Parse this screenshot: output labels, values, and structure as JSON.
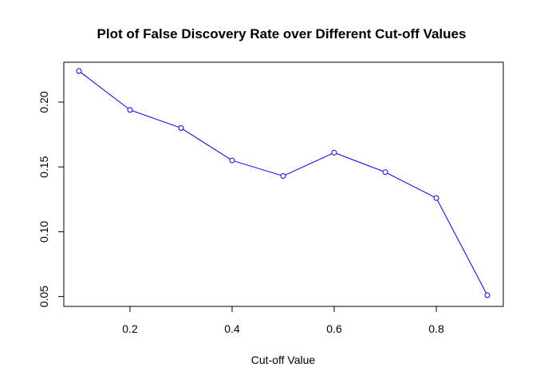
{
  "chart_data": {
    "type": "line",
    "title": "Plot of False Discovery Rate over Different Cut-off Values",
    "xlabel": "Cut-off Value",
    "ylabel": "",
    "x": [
      0.1,
      0.2,
      0.3,
      0.4,
      0.5,
      0.6,
      0.7,
      0.8,
      0.9
    ],
    "series": [
      {
        "values": [
          0.224,
          0.194,
          0.18,
          0.155,
          0.143,
          0.161,
          0.146,
          0.126,
          0.051
        ]
      }
    ],
    "xlim": [
      0.1,
      0.9
    ],
    "ylim": [
      0.051,
      0.224
    ],
    "xticks": [
      0.2,
      0.4,
      0.6,
      0.8
    ],
    "xtick_labels": [
      "0.2",
      "0.4",
      "0.6",
      "0.8"
    ],
    "yticks": [
      0.05,
      0.1,
      0.15,
      0.2
    ],
    "ytick_labels": [
      "0.05",
      "0.10",
      "0.15",
      "0.20"
    ],
    "grid": false,
    "markers": "open-circle",
    "line_color": "#0000ff",
    "marker_color": "#0000ff"
  }
}
